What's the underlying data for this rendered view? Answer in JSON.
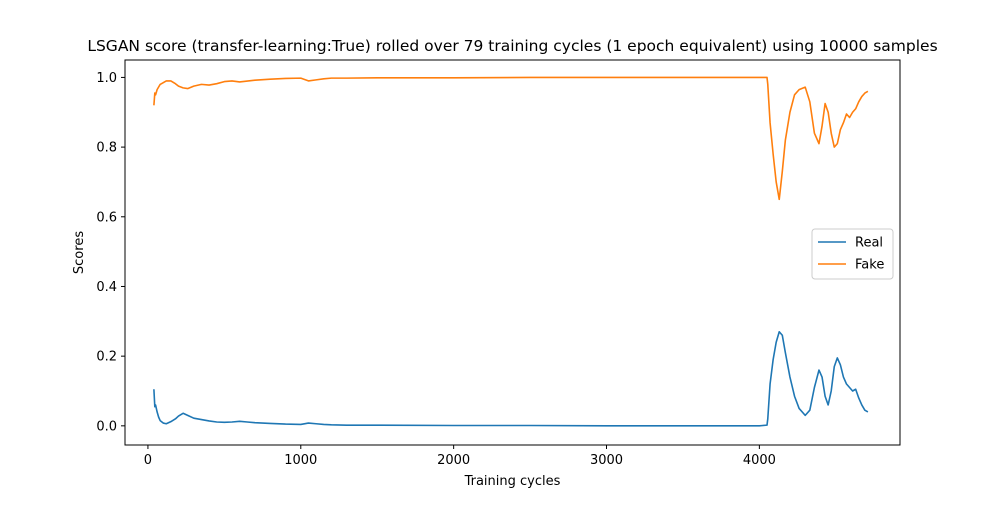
{
  "chart_data": {
    "type": "line",
    "title": "LSGAN score (transfer-learning:True) rolled over 79 training cycles (1 epoch equivalent) using 10000 samples",
    "xlabel": "Training cycles",
    "ylabel": "Scores",
    "xlim": [
      -150,
      4920
    ],
    "ylim": [
      -0.055,
      1.05
    ],
    "xticks": [
      0,
      1000,
      2000,
      3000,
      4000
    ],
    "yticks": [
      0.0,
      0.2,
      0.4,
      0.6,
      0.8,
      1.0
    ],
    "xtick_labels": [
      "0",
      "1000",
      "2000",
      "3000",
      "4000"
    ],
    "ytick_labels": [
      "0.0",
      "0.2",
      "0.4",
      "0.6",
      "0.8",
      "1.0"
    ],
    "grid": false,
    "legend_position": "center-right",
    "series": [
      {
        "name": "Real",
        "color": "#1f77b4",
        "x": [
          39,
          45,
          50,
          60,
          70,
          80,
          100,
          120,
          150,
          180,
          200,
          230,
          260,
          300,
          350,
          400,
          450,
          500,
          550,
          600,
          650,
          700,
          800,
          900,
          1000,
          1050,
          1100,
          1150,
          1200,
          1300,
          1500,
          2000,
          2500,
          3000,
          3500,
          4000,
          4050,
          4055,
          4070,
          4090,
          4110,
          4130,
          4150,
          4170,
          4200,
          4230,
          4260,
          4300,
          4330,
          4360,
          4390,
          4410,
          4430,
          4450,
          4470,
          4490,
          4510,
          4530,
          4550,
          4570,
          4590,
          4610,
          4630,
          4650,
          4670,
          4690,
          4710
        ],
        "y": [
          0.105,
          0.055,
          0.06,
          0.04,
          0.025,
          0.015,
          0.008,
          0.006,
          0.012,
          0.02,
          0.028,
          0.036,
          0.03,
          0.022,
          0.018,
          0.014,
          0.011,
          0.01,
          0.011,
          0.013,
          0.011,
          0.009,
          0.007,
          0.005,
          0.004,
          0.008,
          0.006,
          0.004,
          0.003,
          0.002,
          0.002,
          0.001,
          0.001,
          0.0,
          0.0,
          0.0,
          0.002,
          0.02,
          0.12,
          0.19,
          0.24,
          0.27,
          0.26,
          0.21,
          0.14,
          0.085,
          0.05,
          0.03,
          0.045,
          0.11,
          0.16,
          0.14,
          0.085,
          0.06,
          0.1,
          0.17,
          0.195,
          0.175,
          0.14,
          0.12,
          0.11,
          0.1,
          0.105,
          0.08,
          0.06,
          0.045,
          0.04
        ]
      },
      {
        "name": "Fake",
        "color": "#ff7f0e",
        "x": [
          39,
          45,
          50,
          60,
          80,
          100,
          120,
          150,
          180,
          200,
          230,
          260,
          300,
          350,
          400,
          450,
          500,
          550,
          600,
          700,
          800,
          900,
          1000,
          1050,
          1100,
          1150,
          1200,
          1300,
          1500,
          2000,
          2500,
          3000,
          3500,
          4000,
          4050,
          4055,
          4070,
          4090,
          4110,
          4130,
          4150,
          4170,
          4200,
          4230,
          4260,
          4300,
          4330,
          4360,
          4390,
          4410,
          4430,
          4450,
          4470,
          4490,
          4510,
          4530,
          4550,
          4570,
          4590,
          4610,
          4630,
          4650,
          4670,
          4690,
          4710
        ],
        "y": [
          0.92,
          0.955,
          0.95,
          0.965,
          0.98,
          0.985,
          0.99,
          0.99,
          0.982,
          0.975,
          0.97,
          0.968,
          0.975,
          0.98,
          0.978,
          0.982,
          0.988,
          0.99,
          0.987,
          0.992,
          0.995,
          0.997,
          0.998,
          0.99,
          0.993,
          0.996,
          0.998,
          0.998,
          0.999,
          0.999,
          1.0,
          1.0,
          1.0,
          1.0,
          1.0,
          0.98,
          0.87,
          0.78,
          0.7,
          0.65,
          0.73,
          0.82,
          0.9,
          0.95,
          0.965,
          0.972,
          0.93,
          0.84,
          0.81,
          0.86,
          0.925,
          0.9,
          0.84,
          0.8,
          0.81,
          0.85,
          0.87,
          0.895,
          0.885,
          0.9,
          0.91,
          0.93,
          0.945,
          0.955,
          0.96
        ]
      }
    ]
  }
}
